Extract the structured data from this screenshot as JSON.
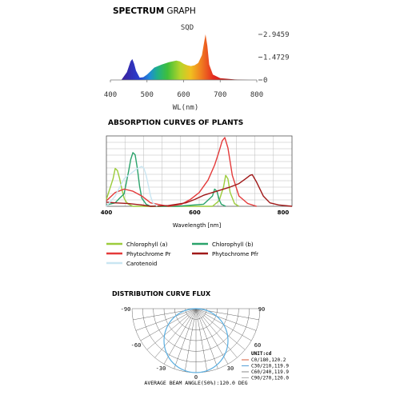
{
  "chart_data": [
    {
      "type": "area",
      "title_bold": "SPECTRUM",
      "title_light": "GRAPH",
      "series_label": "SQD",
      "xlabel": "WL(nm)",
      "xlim": [
        400,
        800
      ],
      "x_ticks": [
        "400",
        "500",
        "600",
        "700",
        "800"
      ],
      "y_ticks": [
        "2.9459",
        "1.4729",
        "0"
      ],
      "ylim": [
        0,
        2.9459
      ],
      "spectrum": {
        "x": [
          430,
          445,
          455,
          460,
          465,
          470,
          480,
          490,
          500,
          520,
          540,
          560,
          580,
          590,
          600,
          610,
          620,
          630,
          640,
          650,
          655,
          660,
          665,
          670,
          680,
          700,
          740,
          780
        ],
        "y": [
          0.0,
          0.5,
          1.2,
          1.35,
          1.05,
          0.6,
          0.15,
          0.18,
          0.35,
          0.8,
          1.0,
          1.15,
          1.25,
          1.2,
          1.05,
          0.95,
          0.9,
          0.95,
          1.1,
          1.6,
          2.3,
          2.9459,
          2.2,
          1.0,
          0.35,
          0.12,
          0.03,
          0.0
        ]
      }
    },
    {
      "type": "line",
      "title": "ABSORPTION CURVES OF PLANTS",
      "xlabel": "Wavelength [nm]",
      "xlim": [
        400,
        820
      ],
      "x_ticks": [
        "400",
        "600",
        "800"
      ],
      "grid": true,
      "legend_position": "bottom",
      "series": [
        {
          "name": "Chlorophyll (a)",
          "color": "#9ccc3c",
          "x": [
            400,
            415,
            420,
            425,
            430,
            435,
            440,
            445,
            450,
            460,
            640,
            655,
            665,
            670,
            675,
            680,
            690,
            700
          ],
          "y": [
            0.1,
            0.4,
            0.55,
            0.52,
            0.4,
            0.25,
            0.12,
            0.06,
            0.03,
            0.0,
            0.0,
            0.08,
            0.28,
            0.45,
            0.4,
            0.2,
            0.04,
            0.0
          ]
        },
        {
          "name": "Chlorophyll (b)",
          "color": "#2aa36b",
          "x": [
            400,
            420,
            430,
            440,
            450,
            455,
            460,
            465,
            470,
            475,
            480,
            490,
            500,
            560,
            620,
            640,
            645,
            650,
            655,
            660,
            670
          ],
          "y": [
            0.02,
            0.05,
            0.12,
            0.18,
            0.5,
            0.68,
            0.78,
            0.75,
            0.55,
            0.3,
            0.12,
            0.03,
            0.0,
            0.0,
            0.03,
            0.15,
            0.25,
            0.22,
            0.1,
            0.03,
            0.0
          ]
        },
        {
          "name": "Phytochrome Pr",
          "color": "#e43a3a",
          "x": [
            400,
            420,
            440,
            460,
            480,
            500,
            540,
            570,
            590,
            610,
            630,
            645,
            655,
            662,
            668,
            675,
            685,
            700,
            720,
            740
          ],
          "y": [
            0.08,
            0.2,
            0.25,
            0.22,
            0.15,
            0.05,
            0.0,
            0.03,
            0.1,
            0.2,
            0.38,
            0.6,
            0.8,
            0.95,
            1.0,
            0.85,
            0.45,
            0.15,
            0.04,
            0.0
          ]
        },
        {
          "name": "Phytochrome Pfr",
          "color": "#a01818",
          "x": [
            400,
            420,
            450,
            480,
            500,
            540,
            580,
            600,
            620,
            650,
            680,
            700,
            715,
            725,
            730,
            740,
            755,
            770,
            790,
            820
          ],
          "y": [
            0.06,
            0.05,
            0.04,
            0.02,
            0.0,
            0.01,
            0.05,
            0.1,
            0.16,
            0.22,
            0.28,
            0.33,
            0.4,
            0.45,
            0.46,
            0.35,
            0.15,
            0.05,
            0.02,
            0.0
          ]
        },
        {
          "name": "Carotenoid",
          "color": "#c9e6f2",
          "x": [
            400,
            420,
            440,
            460,
            470,
            480,
            485,
            490,
            495,
            500,
            505,
            515
          ],
          "y": [
            0.0,
            0.15,
            0.4,
            0.5,
            0.55,
            0.58,
            0.55,
            0.45,
            0.3,
            0.15,
            0.05,
            0.0
          ]
        }
      ]
    },
    {
      "type": "polar",
      "title": "DISTRIBUTION CURVE FLUX",
      "angle_labels": {
        "left90": "-90",
        "right90": "90",
        "left60": "-60",
        "right60": "60",
        "left30": "-30",
        "right30": "30",
        "zero": "0"
      },
      "unit": "UNIT:cd",
      "legend": [
        {
          "label": "C0/180,120.2",
          "color": "#d65a3a"
        },
        {
          "label": "C30/210,119.9",
          "color": "#55a0d8"
        },
        {
          "label": "C60/240,119.9",
          "color": "#8a8a8a"
        },
        {
          "label": "C90/270,120.0",
          "color": "#b0b0b0"
        }
      ],
      "beam_angle_text": "AVERAGE BEAM ANGLE(50%):120.0 DEG"
    }
  ]
}
